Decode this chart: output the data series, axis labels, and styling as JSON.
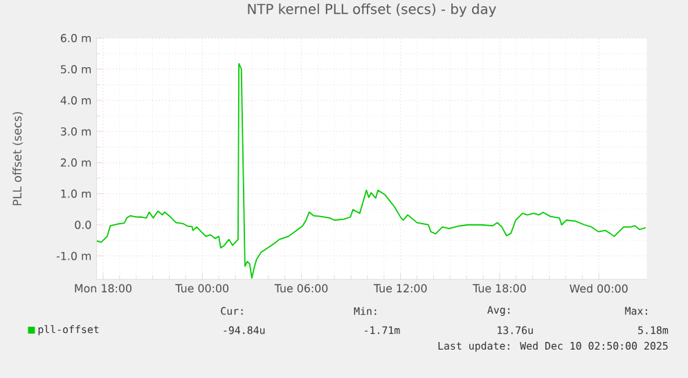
{
  "chart_data": {
    "type": "line",
    "title": "NTP kernel PLL offset (secs) - by day",
    "ylabel": "PLL offset (secs)",
    "x": [
      "2025-12-08T17:37",
      "2025-12-08T17:53",
      "2025-12-08T18:15",
      "2025-12-08T18:26",
      "2025-12-08T18:56",
      "2025-12-08T19:17",
      "2025-12-08T19:26",
      "2025-12-08T19:38",
      "2025-12-08T20:04",
      "2025-12-08T20:20",
      "2025-12-08T20:37",
      "2025-12-08T20:47",
      "2025-12-08T21:02",
      "2025-12-08T21:19",
      "2025-12-08T21:35",
      "2025-12-08T21:43",
      "2025-12-08T22:00",
      "2025-12-08T22:25",
      "2025-12-08T22:50",
      "2025-12-08T23:07",
      "2025-12-08T23:23",
      "2025-12-08T23:26",
      "2025-12-08T23:40",
      "2025-12-08T23:56",
      "2025-12-09T00:13",
      "2025-12-09T00:30",
      "2025-12-09T00:47",
      "2025-12-09T01:00",
      "2025-12-09T01:07",
      "2025-12-09T01:20",
      "2025-12-09T01:37",
      "2025-12-09T01:50",
      "2025-12-09T02:10",
      "2025-12-09T02:13",
      "2025-12-09T02:22",
      "2025-12-09T02:35",
      "2025-12-09T02:43",
      "2025-12-09T02:52",
      "2025-12-09T03:00",
      "2025-12-09T03:08",
      "2025-12-09T03:17",
      "2025-12-09T03:34",
      "2025-12-09T03:58",
      "2025-12-09T04:23",
      "2025-12-09T04:40",
      "2025-12-09T05:13",
      "2025-12-09T05:47",
      "2025-12-09T06:04",
      "2025-12-09T06:17",
      "2025-12-09T06:28",
      "2025-12-09T06:45",
      "2025-12-09T07:10",
      "2025-12-09T07:43",
      "2025-12-09T08:00",
      "2025-12-09T08:34",
      "2025-12-09T08:58",
      "2025-12-09T09:07",
      "2025-12-09T09:32",
      "2025-12-09T09:56",
      "2025-12-09T10:05",
      "2025-12-09T10:13",
      "2025-12-09T10:30",
      "2025-12-09T10:38",
      "2025-12-09T11:04",
      "2025-12-09T11:37",
      "2025-12-09T12:02",
      "2025-12-09T12:10",
      "2025-12-09T12:26",
      "2025-12-09T13:00",
      "2025-12-09T13:41",
      "2025-12-09T13:50",
      "2025-12-09T14:07",
      "2025-12-09T14:32",
      "2025-12-09T14:56",
      "2025-12-09T15:30",
      "2025-12-09T16:04",
      "2025-12-09T16:53",
      "2025-12-09T17:35",
      "2025-12-09T17:52",
      "2025-12-09T18:08",
      "2025-12-09T18:25",
      "2025-12-09T18:41",
      "2025-12-09T18:58",
      "2025-12-09T19:23",
      "2025-12-09T19:40",
      "2025-12-09T20:05",
      "2025-12-09T20:22",
      "2025-12-09T20:38",
      "2025-12-09T21:04",
      "2025-12-09T21:37",
      "2025-12-09T21:45",
      "2025-12-09T22:02",
      "2025-12-09T22:35",
      "2025-12-09T23:08",
      "2025-12-09T23:34",
      "2025-12-09T23:58",
      "2025-12-10T00:23",
      "2025-12-10T00:40",
      "2025-12-10T00:56",
      "2025-12-10T01:30",
      "2025-12-10T01:55",
      "2025-12-10T02:11",
      "2025-12-10T02:28",
      "2025-12-10T02:50"
    ],
    "series": [
      {
        "name": "pll-offset",
        "color": "#00cc00",
        "values": [
          -0.52,
          -0.56,
          -0.37,
          -0.03,
          0.03,
          0.06,
          0.22,
          0.29,
          0.25,
          0.25,
          0.22,
          0.41,
          0.22,
          0.44,
          0.32,
          0.41,
          0.29,
          0.07,
          0.04,
          -0.04,
          -0.06,
          -0.18,
          -0.07,
          -0.22,
          -0.37,
          -0.32,
          -0.44,
          -0.37,
          -0.74,
          -0.66,
          -0.47,
          -0.66,
          -0.47,
          5.18,
          5.01,
          -1.33,
          -1.18,
          -1.25,
          -1.71,
          -1.4,
          -1.11,
          -0.88,
          -0.74,
          -0.59,
          -0.47,
          -0.37,
          -0.15,
          -0.04,
          0.15,
          0.41,
          0.29,
          0.27,
          0.22,
          0.15,
          0.18,
          0.25,
          0.49,
          0.37,
          1.11,
          0.88,
          1.03,
          0.86,
          1.11,
          0.96,
          0.59,
          0.22,
          0.15,
          0.32,
          0.07,
          0.0,
          -0.22,
          -0.29,
          -0.07,
          -0.12,
          -0.04,
          0.0,
          0.0,
          -0.03,
          0.07,
          -0.07,
          -0.35,
          -0.27,
          0.15,
          0.37,
          0.32,
          0.37,
          0.32,
          0.4,
          0.27,
          0.22,
          0.0,
          0.15,
          0.12,
          0.0,
          -0.07,
          -0.22,
          -0.18,
          -0.27,
          -0.37,
          -0.07,
          -0.07,
          -0.03,
          -0.15,
          -0.09
        ]
      }
    ],
    "xlim": [
      "2025-12-08T17:36",
      "2025-12-10T02:54"
    ],
    "xticks": [
      {
        "value": "2025-12-08T18:00",
        "label": "Mon 18:00"
      },
      {
        "value": "2025-12-09T00:00",
        "label": "Tue 00:00"
      },
      {
        "value": "2025-12-09T06:00",
        "label": "Tue 06:00"
      },
      {
        "value": "2025-12-09T12:00",
        "label": "Tue 12:00"
      },
      {
        "value": "2025-12-09T18:00",
        "label": "Tue 18:00"
      },
      {
        "value": "2025-12-10T00:00",
        "label": "Wed 00:00"
      }
    ],
    "ylim": [
      -1.75,
      6.0
    ],
    "yticks": [
      {
        "value": -1,
        "label": "-1.0 m"
      },
      {
        "value": 0,
        "label": "0.0"
      },
      {
        "value": 1,
        "label": "1.0 m"
      },
      {
        "value": 2,
        "label": "2.0 m"
      },
      {
        "value": 3,
        "label": "3.0 m"
      },
      {
        "value": 4,
        "label": "4.0 m"
      },
      {
        "value": 5,
        "label": "5.0 m"
      },
      {
        "value": 6,
        "label": "6.0 m"
      }
    ],
    "grid": true,
    "legend": "bottom left",
    "line_style": "solid",
    "marker": "none",
    "annotations": [
      "Cur:",
      "Min:",
      "Avg:",
      "Max:",
      "-94.84u",
      "-1.71m",
      "13.76u",
      "5.18m",
      "Last update: Wed Dec 10 02:50:00 2025"
    ]
  }
}
